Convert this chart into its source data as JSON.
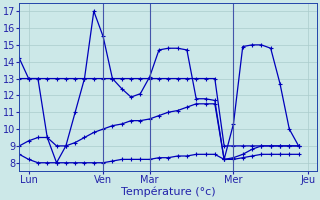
{
  "background_color": "#cce8e8",
  "grid_color": "#aacccc",
  "line_color": "#0000bb",
  "xlabel": "Température (°c)",
  "tick_fontsize": 7,
  "xlabel_fontsize": 8,
  "ylim": [
    7.5,
    17.5
  ],
  "yticks": [
    8,
    9,
    10,
    11,
    12,
    13,
    14,
    15,
    16,
    17
  ],
  "xlim": [
    0,
    32
  ],
  "xtick_positions": [
    1,
    9,
    14,
    23,
    31
  ],
  "xtick_labels": [
    "Lun",
    "Ven",
    "Mar",
    "Mer",
    "Jeu"
  ],
  "vline_positions": [
    9,
    14,
    23
  ],
  "series1": [
    14.2,
    13.0,
    13.0,
    9.5,
    8.0,
    9.0,
    11.0,
    13.0,
    17.0,
    15.5,
    13.0,
    12.4,
    11.9,
    12.1,
    13.1,
    14.7,
    14.8,
    14.8,
    14.7,
    11.8,
    11.8,
    11.7,
    8.2,
    10.3,
    14.9,
    15.0,
    15.0,
    14.8,
    12.7,
    10.0,
    9.0
  ],
  "series2": [
    13.0,
    13.0,
    13.0,
    13.0,
    13.0,
    13.0,
    13.0,
    13.0,
    13.0,
    13.0,
    13.0,
    13.0,
    13.0,
    13.0,
    13.0,
    13.0,
    13.0,
    13.0,
    13.0,
    13.0,
    13.0,
    13.0,
    9.0,
    9.0,
    9.0,
    9.0,
    9.0,
    9.0,
    9.0,
    9.0,
    9.0
  ],
  "series3": [
    9.0,
    9.3,
    9.5,
    9.5,
    9.0,
    9.0,
    9.2,
    9.5,
    9.8,
    10.0,
    10.2,
    10.3,
    10.5,
    10.5,
    10.6,
    10.8,
    11.0,
    11.1,
    11.3,
    11.5,
    11.5,
    11.5,
    8.2,
    8.3,
    8.5,
    8.8,
    9.0,
    9.0,
    9.0,
    9.0,
    9.0
  ],
  "series4": [
    8.5,
    8.2,
    8.0,
    8.0,
    8.0,
    8.0,
    8.0,
    8.0,
    8.0,
    8.0,
    8.1,
    8.2,
    8.2,
    8.2,
    8.2,
    8.3,
    8.3,
    8.4,
    8.4,
    8.5,
    8.5,
    8.5,
    8.2,
    8.2,
    8.3,
    8.4,
    8.5,
    8.5,
    8.5,
    8.5,
    8.5
  ]
}
